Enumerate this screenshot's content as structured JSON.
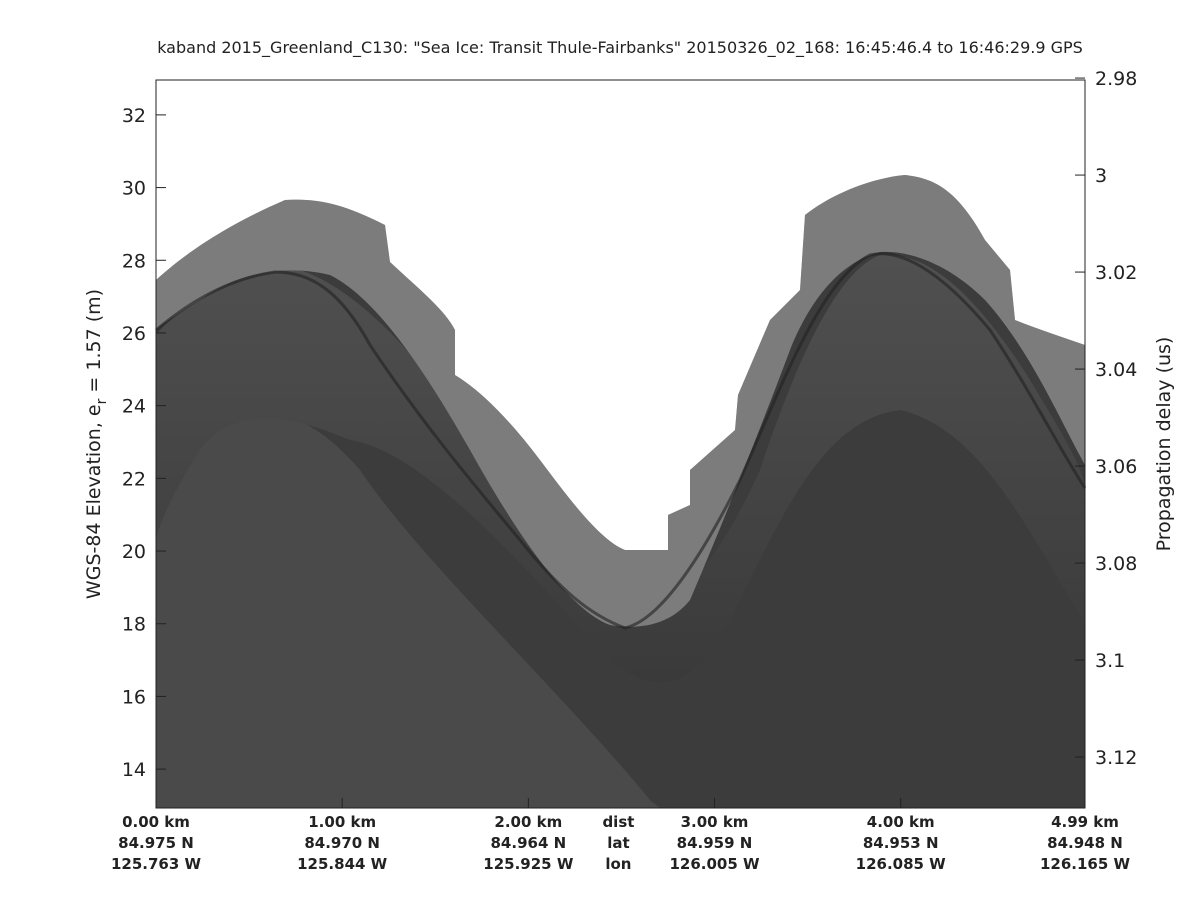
{
  "chart_data": {
    "type": "echogram",
    "title": "kaband 2015_Greenland_C130: \"Sea Ice: Transit Thule-Fairbanks\"  20150326_02_168: 16:45:46.4 to 16:46:29.9 GPS",
    "ylabel": "WGS-84 Elevation, e",
    "ylabel_sub": "r",
    "ylabel_rest": " = 1.57 (m)",
    "y2label": "Propagation delay (us)",
    "xlim": [
      0,
      4.99
    ],
    "xticks": [
      {
        "value": 0,
        "label": "0.00 km"
      },
      {
        "value": 1,
        "label": "1.00 km"
      },
      {
        "value": 2,
        "label": "2.00 km"
      },
      {
        "value": 3,
        "label": "3.00 km"
      },
      {
        "value": 4,
        "label": "4.00 km"
      },
      {
        "value": 4.99,
        "label": "4.99 km"
      }
    ],
    "lat_labels": [
      "84.975 N",
      "84.970 N",
      "84.964 N",
      "84.959 N",
      "84.953 N",
      "84.948 N"
    ],
    "lon_labels": [
      "125.763 W",
      "125.844 W",
      "125.925 W",
      "126.005 W",
      "126.085 W",
      "126.165 W"
    ],
    "row_names": [
      "dist",
      "lat",
      "lon"
    ],
    "ylim": [
      12.93,
      32.96
    ],
    "yticks": [
      14,
      16,
      18,
      20,
      22,
      24,
      26,
      28,
      30,
      32
    ],
    "y2lim": [
      3.1305,
      2.9804
    ],
    "y2ticks": [
      2.98,
      3,
      3.02,
      3.04,
      3.06,
      3.08,
      3.1,
      3.12
    ]
  }
}
